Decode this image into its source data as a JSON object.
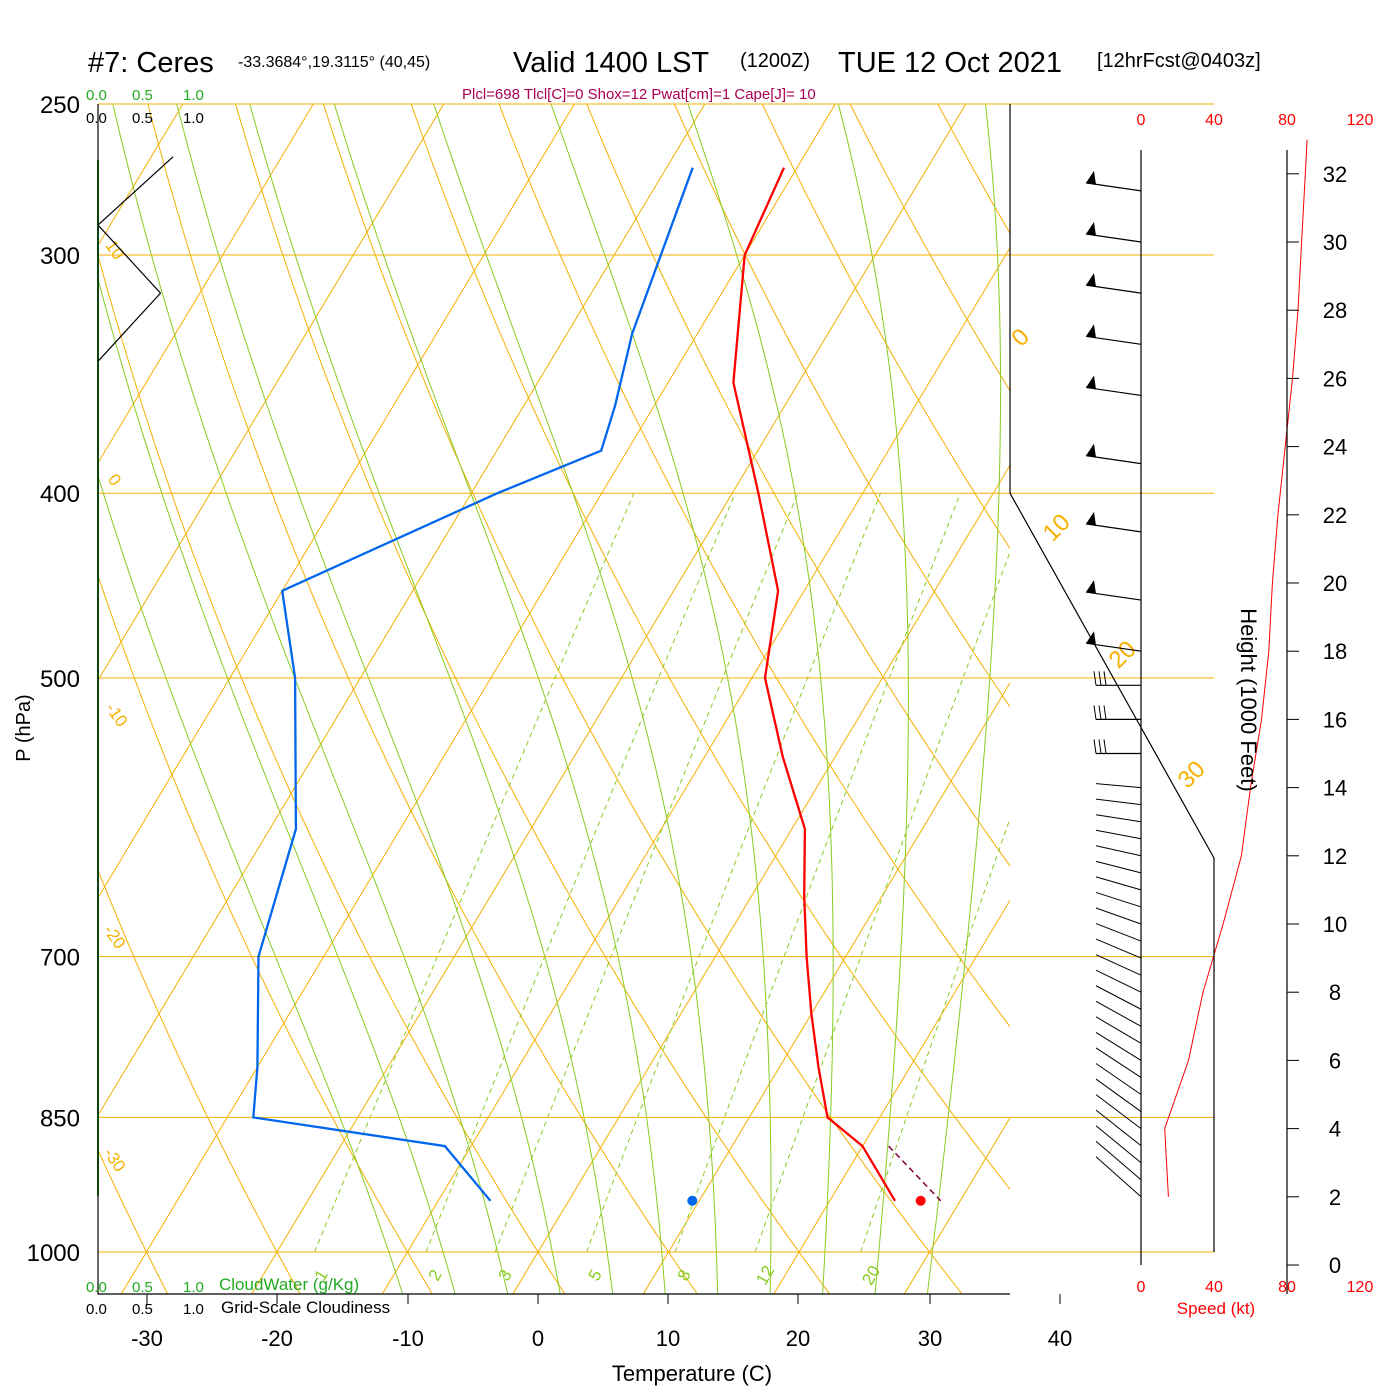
{
  "header": {
    "station": "#7: Ceres",
    "coords": "-33.3684°,19.3115° (40,45)",
    "valid": "Valid 1400 LST",
    "zulu": "(1200Z)",
    "date": "TUE 12 Oct 2021",
    "forecast": "[12hrFcst@0403z]",
    "indices": "Plcl=698 Tlcl[C]=0 Shox=12 Pwat[cm]=1 Cape[J]= 10"
  },
  "colors": {
    "temperature": "#ff0000",
    "dewpoint": "#0066ee",
    "isotherm": "#f5b000",
    "dry_adiabat": "#f5b000",
    "moist_adiabat": "#88cc22",
    "mixing_ratio": "#88cc22",
    "cloud_water": "#22aa22",
    "speed_axis": "#ff0000",
    "indices": "#aa0055"
  },
  "axes": {
    "xlabel": "Temperature (C)",
    "ylabel": "P (hPa)",
    "right_label": "Height (1000 Feet)",
    "xticks": [
      "-30",
      "-20",
      "-10",
      "0",
      "10",
      "20",
      "30",
      "40"
    ],
    "pressure_ticks": [
      "250",
      "300",
      "400",
      "500",
      "700",
      "850",
      "1000"
    ],
    "height_ticks": [
      "32",
      "30",
      "28",
      "26",
      "24",
      "22",
      "20",
      "18",
      "16",
      "14",
      "12",
      "10",
      "8",
      "6",
      "4",
      "2",
      "0"
    ],
    "speed_ticks": [
      "0",
      "40",
      "80",
      "120"
    ],
    "speed_label": "Speed (kt)",
    "cloud_scale_top": [
      "0.0",
      "0.5",
      "1.0"
    ],
    "cloud_scale_bottom": [
      "0.0",
      "0.5",
      "1.0"
    ],
    "cloud_water_label": "CloudWater (g/Kg)",
    "cloudiness_label": "Grid-Scale Cloudiness"
  },
  "line_labels": {
    "isotherms": [
      "0",
      "10",
      "20",
      "30"
    ],
    "dry_adiabats": [
      "10",
      "0",
      "-10",
      "-20",
      "-30"
    ],
    "mixing_ratios": [
      "1",
      "2",
      "3",
      "5",
      "8",
      "12",
      "20"
    ]
  },
  "chart_data": {
    "type": "skew-t",
    "pressure_range_hpa": [
      250,
      1000
    ],
    "temperature_range_c": [
      -30,
      40
    ],
    "temperature_profile": [
      {
        "p": 270,
        "t": -31
      },
      {
        "p": 300,
        "t": -30
      },
      {
        "p": 350,
        "t": -25
      },
      {
        "p": 400,
        "t": -18
      },
      {
        "p": 450,
        "t": -12
      },
      {
        "p": 500,
        "t": -9
      },
      {
        "p": 550,
        "t": -4
      },
      {
        "p": 600,
        "t": 1
      },
      {
        "p": 650,
        "t": 4
      },
      {
        "p": 700,
        "t": 7
      },
      {
        "p": 750,
        "t": 10
      },
      {
        "p": 800,
        "t": 13
      },
      {
        "p": 850,
        "t": 16
      },
      {
        "p": 880,
        "t": 20
      },
      {
        "p": 940,
        "t": 25
      }
    ],
    "dewpoint_profile": [
      {
        "p": 270,
        "t": -38
      },
      {
        "p": 330,
        "t": -35
      },
      {
        "p": 360,
        "t": -33
      },
      {
        "p": 380,
        "t": -32
      },
      {
        "p": 400,
        "t": -38
      },
      {
        "p": 450,
        "t": -50
      },
      {
        "p": 500,
        "t": -45
      },
      {
        "p": 600,
        "t": -38
      },
      {
        "p": 700,
        "t": -35
      },
      {
        "p": 800,
        "t": -30
      },
      {
        "p": 850,
        "t": -28
      },
      {
        "p": 880,
        "t": -12
      },
      {
        "p": 940,
        "t": -6
      }
    ],
    "surface_points": {
      "temperature_c": 28.5,
      "dewpoint_c": 11
    },
    "cloud_water_g_per_kg": 0,
    "grid_scale_cloudiness": [
      {
        "height_kft": 32.5,
        "value": 0.6
      },
      {
        "height_kft": 30.5,
        "value": 0.0
      },
      {
        "height_kft": 28.5,
        "value": 0.5
      },
      {
        "height_kft": 26.5,
        "value": 0.0
      }
    ],
    "wind_speed_profile_kt": [
      {
        "height_kft": 2,
        "speed": 15
      },
      {
        "height_kft": 4,
        "speed": 13
      },
      {
        "height_kft": 6,
        "speed": 26
      },
      {
        "height_kft": 8,
        "speed": 34
      },
      {
        "height_kft": 10,
        "speed": 45
      },
      {
        "height_kft": 12,
        "speed": 55
      },
      {
        "height_kft": 14,
        "speed": 60
      },
      {
        "height_kft": 16,
        "speed": 66
      },
      {
        "height_kft": 18,
        "speed": 70
      },
      {
        "height_kft": 20,
        "speed": 72
      },
      {
        "height_kft": 22,
        "speed": 75
      },
      {
        "height_kft": 24,
        "speed": 79
      },
      {
        "height_kft": 26,
        "speed": 83
      },
      {
        "height_kft": 28,
        "speed": 86
      },
      {
        "height_kft": 30,
        "speed": 88
      },
      {
        "height_kft": 32,
        "speed": 90
      },
      {
        "height_kft": 33,
        "speed": 91
      }
    ],
    "wind_barbs_kft": [
      2,
      2.5,
      3,
      3.5,
      4,
      4.5,
      5,
      5.5,
      6,
      6.5,
      7,
      7.5,
      8,
      8.5,
      9,
      9.5,
      10,
      10.5,
      11,
      11.5,
      12,
      12.5,
      13,
      13.5,
      14,
      15,
      16,
      17,
      18,
      19.5,
      21.5,
      23.5,
      25.5,
      27,
      28.5,
      30,
      31.5
    ]
  }
}
